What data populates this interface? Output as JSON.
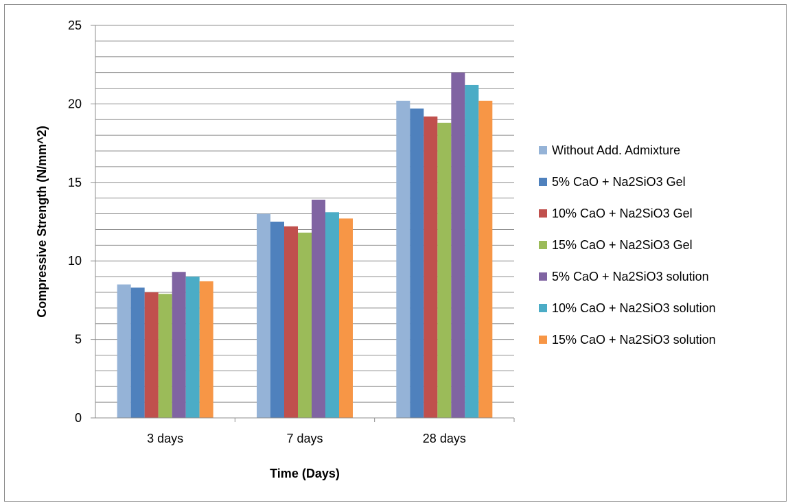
{
  "chart_data": {
    "type": "bar",
    "title": "",
    "xlabel": "Time (Days)",
    "ylabel": "Compressive Strength (N/mm^2)",
    "ylim": [
      0,
      25
    ],
    "yticks": [
      "0",
      "5",
      "10",
      "15",
      "20",
      "25"
    ],
    "minor_grid_step": 1,
    "grid": true,
    "legend_position": "right",
    "categories": [
      "3 days",
      "7 days",
      "28 days"
    ],
    "series": [
      {
        "name": "Without Add. Admixture",
        "color": "#95B3D7",
        "values": [
          8.5,
          13.0,
          20.2
        ]
      },
      {
        "name": "5% CaO + Na2SiO3 Gel",
        "color": "#4F81BD",
        "values": [
          8.3,
          12.5,
          19.7
        ]
      },
      {
        "name": "10% CaO + Na2SiO3 Gel",
        "color": "#C0504D",
        "values": [
          8.0,
          12.2,
          19.2
        ]
      },
      {
        "name": "15% CaO + Na2SiO3 Gel",
        "color": "#9BBB59",
        "values": [
          7.9,
          11.8,
          18.8
        ]
      },
      {
        "name": "5% CaO + Na2SiO3 solution",
        "color": "#8064A2",
        "values": [
          9.3,
          13.9,
          22.0
        ]
      },
      {
        "name": "10% CaO + Na2SiO3 solution",
        "color": "#4BACC6",
        "values": [
          9.0,
          13.1,
          21.2
        ]
      },
      {
        "name": "15% CaO + Na2SiO3 solution",
        "color": "#F79646",
        "values": [
          8.7,
          12.7,
          20.2
        ]
      }
    ]
  }
}
